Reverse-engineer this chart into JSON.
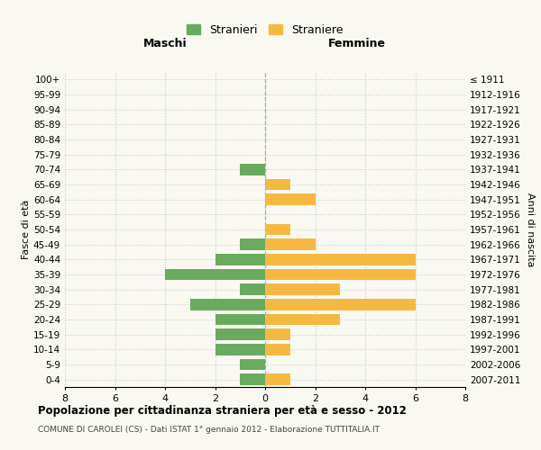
{
  "age_groups": [
    "100+",
    "95-99",
    "90-94",
    "85-89",
    "80-84",
    "75-79",
    "70-74",
    "65-69",
    "60-64",
    "55-59",
    "50-54",
    "45-49",
    "40-44",
    "35-39",
    "30-34",
    "25-29",
    "20-24",
    "15-19",
    "10-14",
    "5-9",
    "0-4"
  ],
  "birth_years": [
    "≤ 1911",
    "1912-1916",
    "1917-1921",
    "1922-1926",
    "1927-1931",
    "1932-1936",
    "1937-1941",
    "1942-1946",
    "1947-1951",
    "1952-1956",
    "1957-1961",
    "1962-1966",
    "1967-1971",
    "1972-1976",
    "1977-1981",
    "1982-1986",
    "1987-1991",
    "1992-1996",
    "1997-2001",
    "2002-2006",
    "2007-2011"
  ],
  "maschi": [
    0,
    0,
    0,
    0,
    0,
    0,
    1,
    0,
    0,
    0,
    0,
    1,
    2,
    4,
    1,
    3,
    2,
    2,
    2,
    1,
    1
  ],
  "femmine": [
    0,
    0,
    0,
    0,
    0,
    0,
    0,
    1,
    2,
    0,
    1,
    2,
    6,
    6,
    3,
    6,
    3,
    1,
    1,
    0,
    1
  ],
  "color_maschi": "#6aaa5e",
  "color_femmine": "#f5b942",
  "xlim": 8,
  "title": "Popolazione per cittadinanza straniera per età e sesso - 2012",
  "subtitle": "COMUNE DI CAROLEI (CS) - Dati ISTAT 1° gennaio 2012 - Elaborazione TUTTITALIA.IT",
  "ylabel_left": "Fasce di età",
  "ylabel_right": "Anni di nascita",
  "label_maschi": "Stranieri",
  "label_femmine": "Straniere",
  "header_maschi": "Maschi",
  "header_femmine": "Femmine",
  "bg_color": "#f9f9f2",
  "grid_color": "#cccccc",
  "bar_height": 0.75
}
